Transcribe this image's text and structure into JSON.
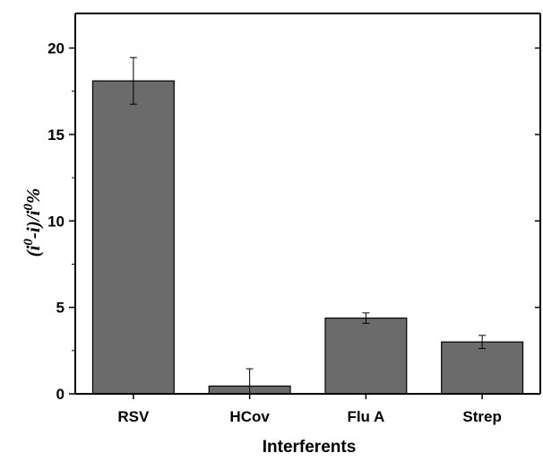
{
  "chart_data": {
    "type": "bar",
    "categories": [
      "RSV",
      "HCov",
      "Flu A",
      "Strep"
    ],
    "values": [
      18.1,
      0.45,
      4.38,
      3.0
    ],
    "errors": [
      1.35,
      1.0,
      0.3,
      0.38
    ],
    "xlabel": "Interferents",
    "ylabel": {
      "open": "(",
      "i1": "i",
      "sup1": "0",
      "mid": "-i)/",
      "i2": "i",
      "sup2": "0",
      "end": "%"
    },
    "ylim": [
      0,
      22
    ],
    "yticks": [
      0,
      5,
      10,
      15,
      20
    ],
    "grid": false,
    "bar_color": "#6b6b6b",
    "bar_edge_color": "#000000"
  }
}
